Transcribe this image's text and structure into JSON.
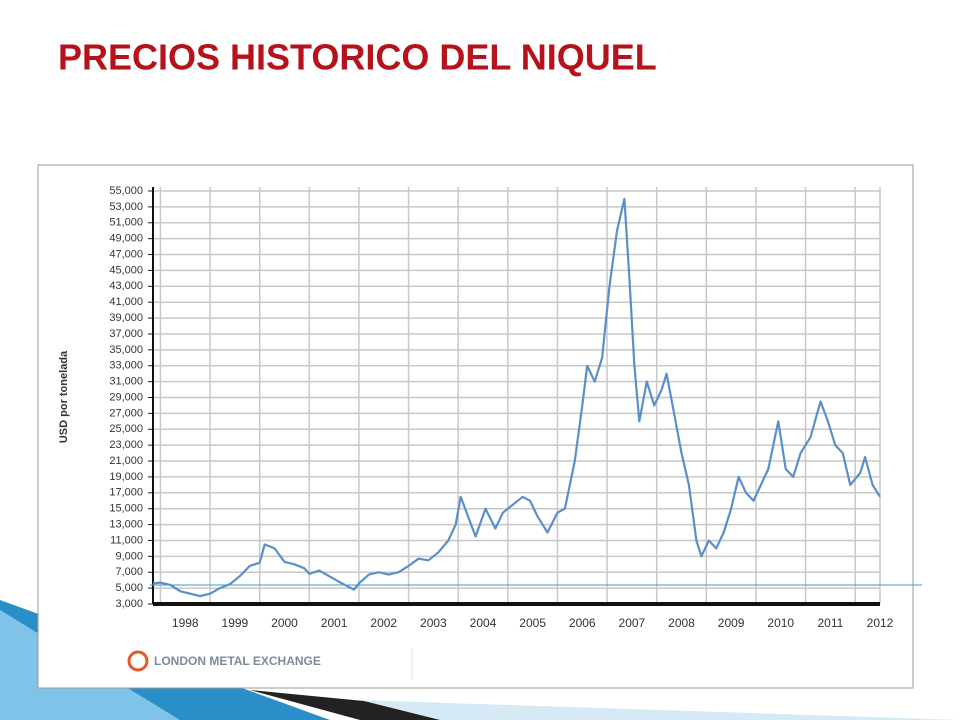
{
  "chart_data": {
    "type": "line",
    "title": "PRECIOS HISTORICO DEL NIQUEL",
    "y_label": "USD por tonelada",
    "source": "LONDON METAL EXCHANGE",
    "xlim": [
      1997.85,
      2012.5
    ],
    "xticks": [
      {
        "value": 1998.5,
        "label": "1998"
      },
      {
        "value": 1999.5,
        "label": "1999"
      },
      {
        "value": 2000.5,
        "label": "2000"
      },
      {
        "value": 2001.5,
        "label": "2001"
      },
      {
        "value": 2002.5,
        "label": "2002"
      },
      {
        "value": 2003.5,
        "label": "2003"
      },
      {
        "value": 2004.5,
        "label": "2004"
      },
      {
        "value": 2005.5,
        "label": "2005"
      },
      {
        "value": 2006.5,
        "label": "2006"
      },
      {
        "value": 2007.5,
        "label": "2007"
      },
      {
        "value": 2008.5,
        "label": "2008"
      },
      {
        "value": 2009.5,
        "label": "2009"
      },
      {
        "value": 2010.5,
        "label": "2010"
      },
      {
        "value": 2011.5,
        "label": "2011"
      },
      {
        "value": 2012.5,
        "label": "2012"
      }
    ],
    "x_gridlines": [
      1998,
      1999,
      2000,
      2001,
      2002,
      2003,
      2004,
      2005,
      2006,
      2007,
      2008,
      2009,
      2010,
      2011,
      2012,
      2012.5
    ],
    "ylim": [
      3000,
      55000
    ],
    "yticks": [
      {
        "value": 3000,
        "label": "3,000"
      },
      {
        "value": 5000,
        "label": "5,000"
      },
      {
        "value": 7000,
        "label": "7,000"
      },
      {
        "value": 9000,
        "label": "9,000"
      },
      {
        "value": 11000,
        "label": "11,000"
      },
      {
        "value": 13000,
        "label": "13,000"
      },
      {
        "value": 15000,
        "label": "15,000"
      },
      {
        "value": 17000,
        "label": "17,000"
      },
      {
        "value": 19000,
        "label": "19,000"
      },
      {
        "value": 21000,
        "label": "21,000"
      },
      {
        "value": 23000,
        "label": "23,000"
      },
      {
        "value": 25000,
        "label": "25,000"
      },
      {
        "value": 27000,
        "label": "27,000"
      },
      {
        "value": 29000,
        "label": "29,000"
      },
      {
        "value": 31000,
        "label": "31,000"
      },
      {
        "value": 33000,
        "label": "33,000"
      },
      {
        "value": 35000,
        "label": "35,000"
      },
      {
        "value": 37000,
        "label": "37,000"
      },
      {
        "value": 39000,
        "label": "39,000"
      },
      {
        "value": 41000,
        "label": "41,000"
      },
      {
        "value": 43000,
        "label": "43,000"
      },
      {
        "value": 45000,
        "label": "45,000"
      },
      {
        "value": 47000,
        "label": "47,000"
      },
      {
        "value": 49000,
        "label": "49,000"
      },
      {
        "value": 51000,
        "label": "51,000"
      },
      {
        "value": 53000,
        "label": "53,000"
      },
      {
        "value": 55000,
        "label": "55,000"
      }
    ],
    "grid": true,
    "color": "#5b8fc9",
    "x": [
      1997.85,
      1998.0,
      1998.2,
      1998.4,
      1998.6,
      1998.8,
      1999.0,
      1999.2,
      1999.4,
      1999.6,
      1999.8,
      2000.0,
      2000.1,
      2000.3,
      2000.5,
      2000.7,
      2000.9,
      2001.0,
      2001.2,
      2001.4,
      2001.6,
      2001.9,
      2002.0,
      2002.2,
      2002.4,
      2002.6,
      2002.8,
      2003.0,
      2003.2,
      2003.4,
      2003.6,
      2003.8,
      2003.95,
      2004.05,
      2004.2,
      2004.35,
      2004.55,
      2004.75,
      2004.9,
      2005.1,
      2005.3,
      2005.45,
      2005.6,
      2005.8,
      2006.0,
      2006.15,
      2006.35,
      2006.5,
      2006.6,
      2006.75,
      2006.9,
      2007.05,
      2007.2,
      2007.35,
      2007.45,
      2007.55,
      2007.65,
      2007.8,
      2007.95,
      2008.1,
      2008.2,
      2008.35,
      2008.5,
      2008.65,
      2008.8,
      2008.9,
      2009.05,
      2009.2,
      2009.35,
      2009.5,
      2009.65,
      2009.8,
      2009.95,
      2010.1,
      2010.25,
      2010.45,
      2010.6,
      2010.75,
      2010.9,
      2011.1,
      2011.3,
      2011.45,
      2011.6,
      2011.75,
      2011.9,
      2012.1,
      2012.2,
      2012.35,
      2012.5
    ],
    "values": [
      5600,
      5700,
      5400,
      4600,
      4300,
      4000,
      4300,
      5000,
      5500,
      6500,
      7800,
      8200,
      10500,
      10000,
      8300,
      8000,
      7500,
      6800,
      7200,
      6500,
      5800,
      4800,
      5600,
      6700,
      7000,
      6700,
      7000,
      7800,
      8700,
      8500,
      9500,
      11000,
      13000,
      16500,
      14000,
      11500,
      15000,
      12500,
      14500,
      15500,
      16500,
      16000,
      14000,
      12000,
      14500,
      15000,
      21000,
      28000,
      33000,
      31000,
      34000,
      43000,
      50000,
      54000,
      44000,
      33000,
      26000,
      31000,
      28000,
      30000,
      32000,
      27000,
      22000,
      18000,
      11000,
      9000,
      11000,
      10000,
      12000,
      15000,
      19000,
      17000,
      16000,
      18000,
      20000,
      26000,
      20000,
      19000,
      22000,
      24000,
      28500,
      26000,
      23000,
      22000,
      18000,
      19500,
      21500,
      18000,
      16500
    ]
  }
}
